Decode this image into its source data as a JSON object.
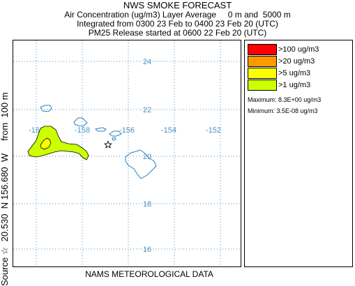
{
  "header": {
    "title": "NWS SMOKE FORECAST",
    "line1": "Air Concentration (ug/m3) Layer Average     0 m and  5000 m",
    "line2": "Integrated from 0300 23 Feb to 0400 23 Feb 20 (UTC)",
    "line3": "PM25 Release started at 0600 22 Feb 20 (UTC)"
  },
  "side_label": "Source ☆  20.530  N 156.680  W     from  100 m",
  "footer": "NAMS METEOROLOGICAL DATA",
  "map": {
    "lon_ticks": [
      "-160",
      "-158",
      "-156",
      "-154",
      "-152"
    ],
    "lat_ticks": [
      "24",
      "22",
      "20",
      "18",
      "16"
    ],
    "source_marker": "star",
    "colors": {
      "coast": "#2a7fc0",
      "grid": "#4a90c0",
      "plume_outer": "#ccff00",
      "plume_inner": "#ffff00"
    }
  },
  "legend": {
    "items": [
      {
        "label": ">100 ug/m3",
        "color": "#ff0000"
      },
      {
        "label": ">20 ug/m3",
        "color": "#ff9900"
      },
      {
        "label": ">5 ug/m3",
        "color": "#ffff00"
      },
      {
        "label": ">1 ug/m3",
        "color": "#ccff00"
      }
    ],
    "maximum": "Maximum: 8.3E+00 ug/m3",
    "minimum": "Minimum: 3.5E-08 ug/m3"
  }
}
